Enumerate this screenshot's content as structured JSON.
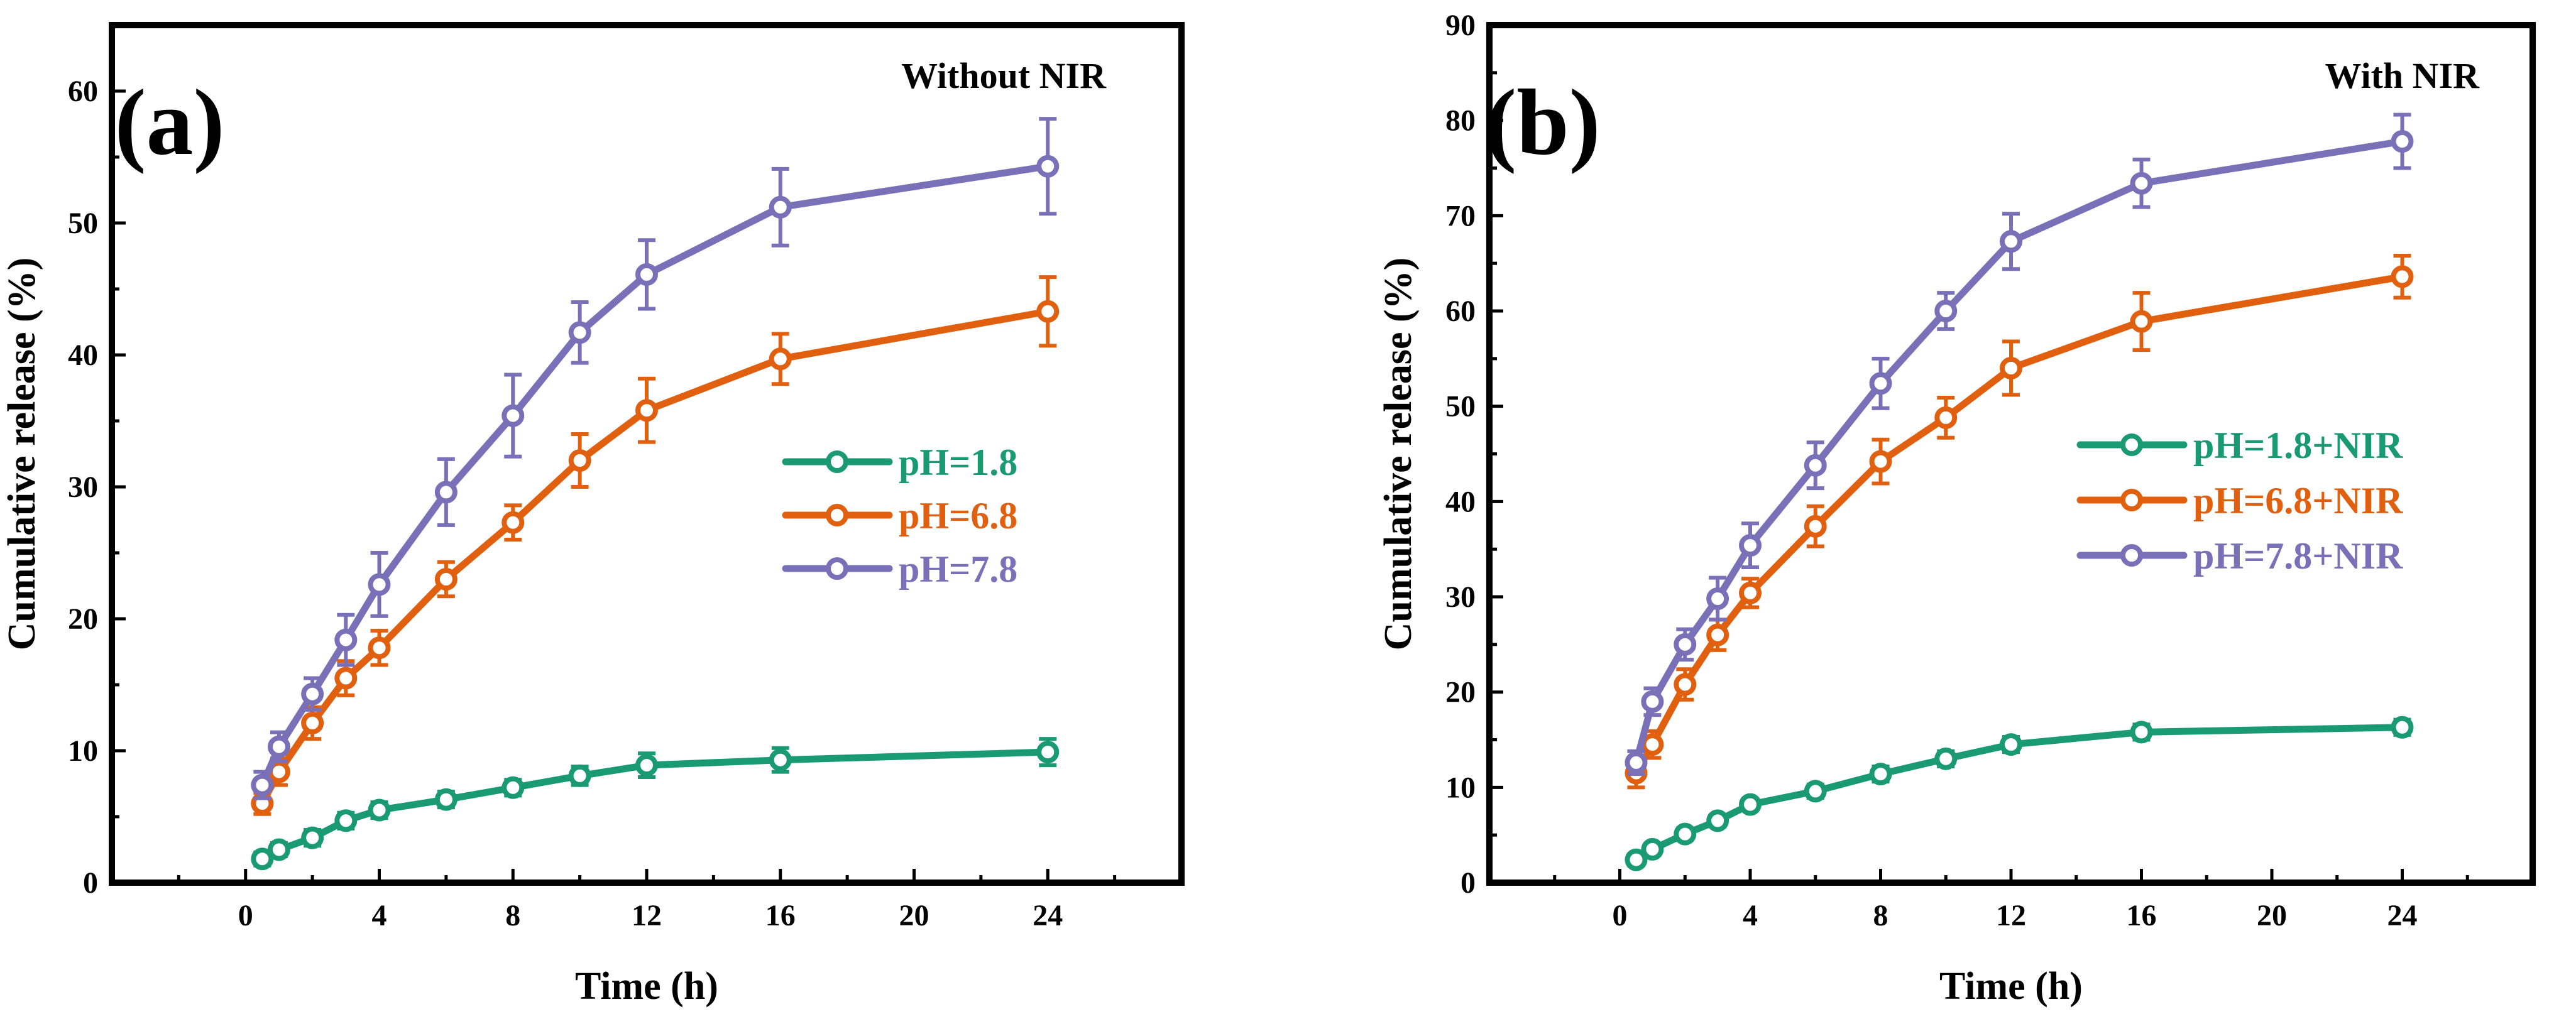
{
  "chart_data": [
    {
      "type": "line",
      "panel_label": "(a)",
      "title": "Without NIR",
      "xlabel": "Time (h)",
      "ylabel": "Cumulative release (%)",
      "xlim": [
        -4,
        28
      ],
      "ylim": [
        0,
        65
      ],
      "xticks": [
        0,
        4,
        8,
        12,
        16,
        20,
        24
      ],
      "yticks": [
        0,
        10,
        20,
        30,
        40,
        50,
        60
      ],
      "legend_position": "right",
      "x": [
        0.5,
        1,
        2,
        3,
        4,
        6,
        8,
        10,
        12,
        16,
        24
      ],
      "series": [
        {
          "name": "pH=1.8",
          "color": "#1a9a72",
          "values": [
            1.8,
            2.5,
            3.4,
            4.7,
            5.5,
            6.3,
            7.2,
            8.1,
            8.9,
            9.3,
            9.9
          ],
          "errors": [
            0.5,
            0.5,
            0.6,
            0.6,
            0.6,
            0.6,
            0.6,
            0.7,
            0.9,
            0.9,
            1.0
          ]
        },
        {
          "name": "pH=6.8",
          "color": "#e06010",
          "values": [
            6.0,
            8.4,
            12.1,
            15.5,
            17.8,
            23.0,
            27.3,
            32.0,
            35.8,
            39.7,
            43.3
          ],
          "errors": [
            0.8,
            1.0,
            1.2,
            1.3,
            1.3,
            1.3,
            1.3,
            2.0,
            2.4,
            1.9,
            2.6
          ]
        },
        {
          "name": "pH=7.8",
          "color": "#7a70b8",
          "values": [
            7.4,
            10.3,
            14.3,
            18.4,
            22.6,
            29.6,
            35.4,
            41.7,
            46.1,
            51.2,
            54.3
          ],
          "errors": [
            1.0,
            1.1,
            1.2,
            1.9,
            2.4,
            2.5,
            3.1,
            2.3,
            2.6,
            2.9,
            3.6
          ]
        }
      ]
    },
    {
      "type": "line",
      "panel_label": "(b)",
      "title": "With NIR",
      "xlabel": "Time (h)",
      "ylabel": "Cumulative release (%)",
      "xlim": [
        -4,
        28
      ],
      "ylim": [
        0,
        90
      ],
      "xticks": [
        0,
        4,
        8,
        12,
        16,
        20,
        24
      ],
      "yticks": [
        0,
        10,
        20,
        30,
        40,
        50,
        60,
        70,
        80,
        90
      ],
      "legend_position": "right",
      "x": [
        0.5,
        1,
        2,
        3,
        4,
        6,
        8,
        10,
        12,
        16,
        24
      ],
      "series": [
        {
          "name": "pH=1.8+NIR",
          "color": "#1a9a72",
          "values": [
            2.4,
            3.5,
            5.1,
            6.5,
            8.2,
            9.6,
            11.4,
            13.0,
            14.5,
            15.8,
            16.3
          ],
          "errors": [
            0.6,
            0.6,
            0.6,
            0.6,
            0.6,
            0.7,
            0.8,
            0.8,
            0.8,
            0.8,
            0.8
          ]
        },
        {
          "name": "pH=6.8+NIR",
          "color": "#e06010",
          "values": [
            11.5,
            14.5,
            20.8,
            26.0,
            30.4,
            37.4,
            44.2,
            48.8,
            54.0,
            58.9,
            63.6
          ],
          "errors": [
            1.5,
            1.4,
            1.6,
            1.6,
            1.5,
            2.1,
            2.3,
            2.1,
            2.8,
            3.0,
            2.2
          ]
        },
        {
          "name": "pH=7.8+NIR",
          "color": "#7a70b8",
          "values": [
            12.6,
            19.0,
            25.0,
            29.8,
            35.4,
            43.8,
            52.4,
            60.0,
            67.3,
            73.4,
            77.8
          ],
          "errors": [
            1.2,
            1.4,
            1.6,
            2.2,
            2.3,
            2.4,
            2.6,
            1.9,
            2.9,
            2.5,
            2.8
          ]
        }
      ]
    }
  ]
}
